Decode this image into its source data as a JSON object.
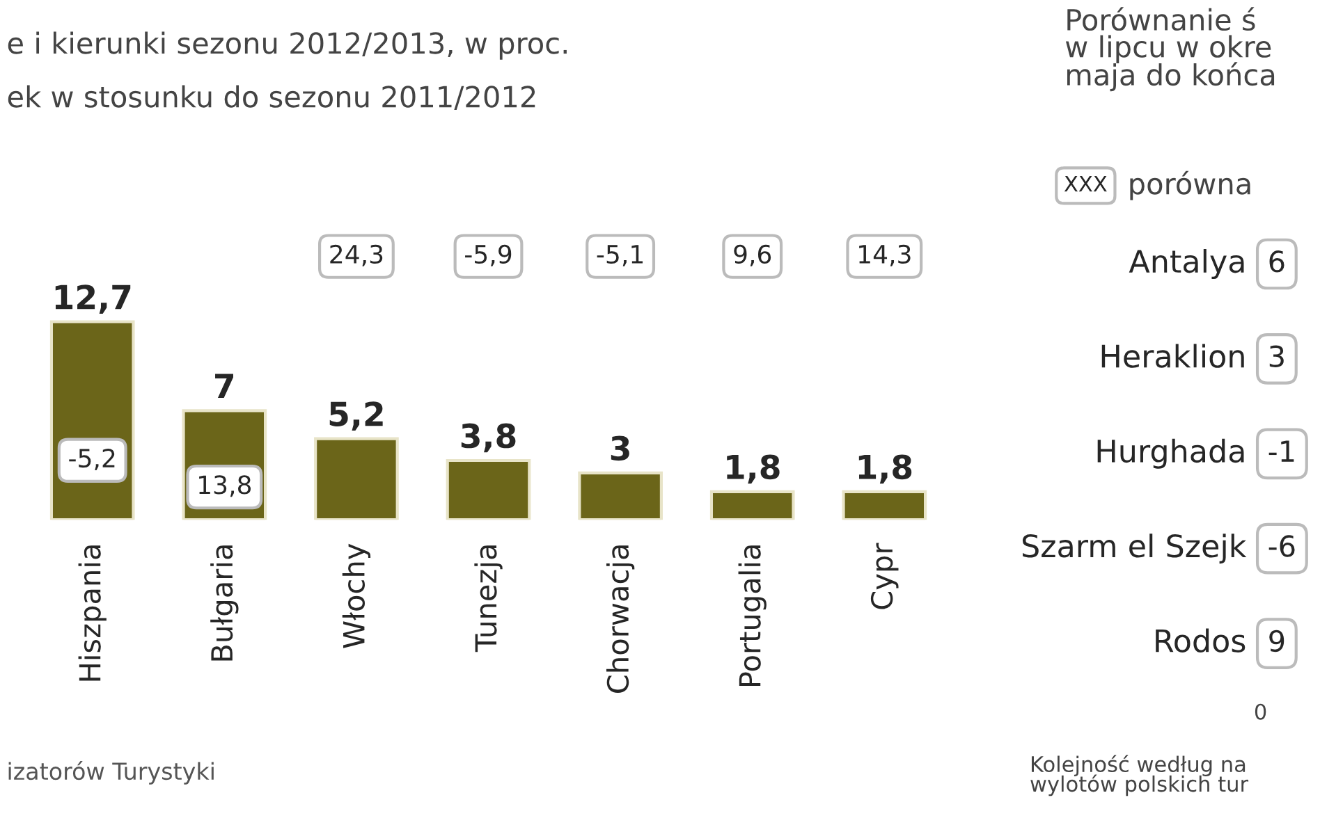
{
  "chart_data": [
    {
      "type": "bar",
      "title": "e i kierunki sezonu 2012/2013, w proc.",
      "subtitle": "ek w stosunku do sezonu 2011/2012",
      "categories": [
        "Hiszpania",
        "Bułgaria",
        "Włochy",
        "Tunezja",
        "Chorwacja",
        "Portugalia",
        "Cypr"
      ],
      "values": [
        12.7,
        7,
        5.2,
        3.8,
        3,
        1.8,
        1.8
      ],
      "color": "#6b6519",
      "value_labels": [
        "12,7",
        "7",
        "5,2",
        "3,8",
        "3",
        "1,8",
        "1,8"
      ],
      "annotations": [
        "-5,2",
        "13,8",
        "24,3",
        "-5,9",
        "-5,1",
        "9,6",
        "14,3",
        "izatorów Turystyki"
      ]
    },
    {
      "type": "other",
      "title": "Porównanie ś\nw lipcu w okre\nmaja do końca",
      "legend_title": "porówna",
      "categories": [
        "Antalya",
        "Heraklion",
        "Hurghada",
        "Szarm el Szejk",
        "Rodos"
      ],
      "annotations": [
        "XXX",
        "6",
        "3",
        "-1",
        "-6",
        "9",
        "0",
        "Kolejność według na\nwylotów polskich tur"
      ]
    }
  ]
}
